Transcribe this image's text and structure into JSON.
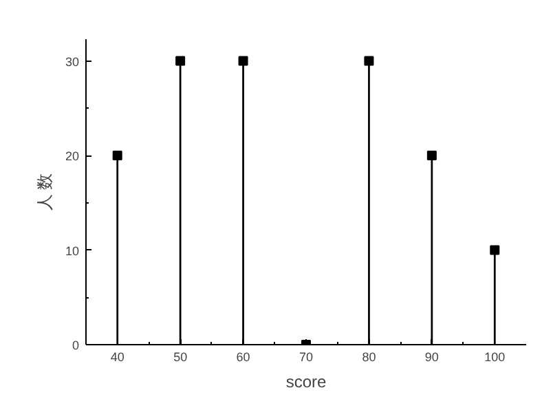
{
  "chart_data": {
    "type": "lollipop",
    "xlabel": "score",
    "ylabel": "人 数",
    "x": [
      40,
      50,
      60,
      70,
      80,
      90,
      100
    ],
    "values": [
      20,
      30,
      30,
      0,
      30,
      20,
      10
    ],
    "color": "#000000",
    "marker": "square",
    "xlim": [
      35,
      105
    ],
    "ylim": [
      0,
      32.3
    ],
    "xticks": [
      40,
      50,
      60,
      70,
      80,
      90,
      100
    ],
    "yticks": [
      0,
      10,
      20,
      30
    ]
  }
}
